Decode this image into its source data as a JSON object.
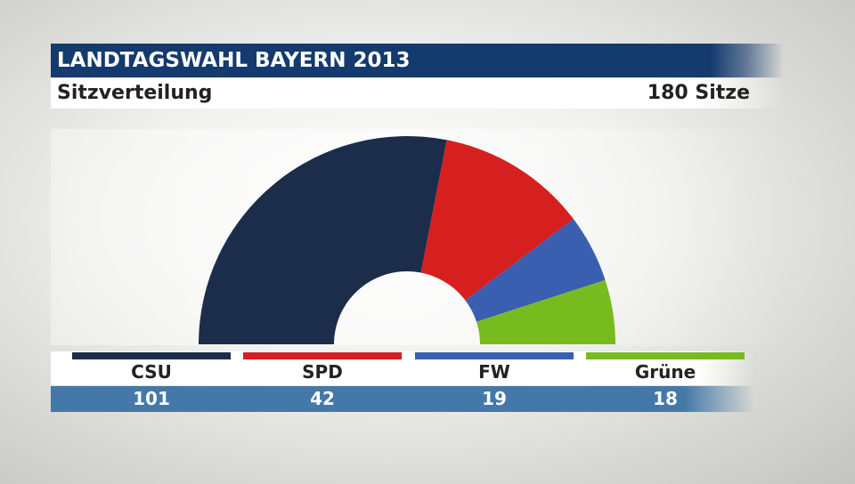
{
  "header": {
    "title": "LANDTAGSWAHL BAYERN 2013",
    "subtitle": "Sitzverteilung",
    "total_label": "180 Sitze"
  },
  "chart_data": {
    "type": "pie",
    "variant": "semicircle-hemicycle",
    "title": "LANDTAGSWAHL BAYERN 2013",
    "subtitle": "Sitzverteilung",
    "total": 180,
    "categories": [
      "CSU",
      "SPD",
      "FW",
      "Grüne"
    ],
    "values": [
      101,
      42,
      19,
      18
    ],
    "value_labels": [
      "101",
      "42",
      "19",
      "18"
    ],
    "colors": [
      "#1b2d4b",
      "#d61f1f",
      "#3a5fb0",
      "#77bb1f"
    ],
    "legend_position": "bottom"
  }
}
